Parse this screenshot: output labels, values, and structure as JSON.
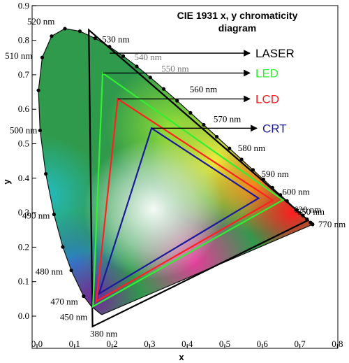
{
  "chart_data": {
    "type": "scatter",
    "title_line1": "CIE 1931 x, y chromaticity",
    "title_line2": "diagram",
    "xlabel": "x",
    "ylabel": "y",
    "xlim": [
      0,
      0.8
    ],
    "ylim": [
      -0.1,
      0.9
    ],
    "xticks": [
      "0.0",
      "0.1",
      "0.2",
      "0.3",
      "0.4",
      "0.5",
      "0.6",
      "0.7",
      "0.8"
    ],
    "yticks": [
      "0.0",
      "0.1",
      "0.2",
      "0.3",
      "0.4",
      "0.5",
      "0.6",
      "0.7",
      "0.8",
      "0.9"
    ],
    "x_tick_values": [
      0,
      0.1,
      0.2,
      0.3,
      0.4,
      0.5,
      0.6,
      0.7,
      0.8
    ],
    "y_tick_values": [
      0,
      0.1,
      0.2,
      0.3,
      0.4,
      0.5,
      0.6,
      0.7,
      0.8,
      0.9
    ],
    "spectral_locus": [
      [
        0.1741,
        0.005
      ],
      [
        0.1733,
        0.0048
      ],
      [
        0.1726,
        0.0048
      ],
      [
        0.1714,
        0.0051
      ],
      [
        0.1689,
        0.0069
      ],
      [
        0.1644,
        0.0109
      ],
      [
        0.1566,
        0.0177
      ],
      [
        0.144,
        0.0297
      ],
      [
        0.1241,
        0.0578
      ],
      [
        0.0913,
        0.1327
      ],
      [
        0.0687,
        0.2007
      ],
      [
        0.0454,
        0.295
      ],
      [
        0.0235,
        0.4127
      ],
      [
        0.0082,
        0.5384
      ],
      [
        0.0039,
        0.6548
      ],
      [
        0.0139,
        0.7502
      ],
      [
        0.0389,
        0.812
      ],
      [
        0.0743,
        0.8338
      ],
      [
        0.1142,
        0.8262
      ],
      [
        0.1547,
        0.8059
      ],
      [
        0.1929,
        0.7816
      ],
      [
        0.2296,
        0.7543
      ],
      [
        0.2658,
        0.7243
      ],
      [
        0.3016,
        0.6923
      ],
      [
        0.3373,
        0.6589
      ],
      [
        0.3731,
        0.6245
      ],
      [
        0.4087,
        0.5896
      ],
      [
        0.4441,
        0.5547
      ],
      [
        0.4788,
        0.5202
      ],
      [
        0.5125,
        0.4866
      ],
      [
        0.5448,
        0.4544
      ],
      [
        0.5752,
        0.4242
      ],
      [
        0.6029,
        0.3965
      ],
      [
        0.627,
        0.3725
      ],
      [
        0.6482,
        0.3514
      ],
      [
        0.6658,
        0.334
      ],
      [
        0.6801,
        0.3197
      ],
      [
        0.6915,
        0.3083
      ],
      [
        0.7006,
        0.2993
      ],
      [
        0.7079,
        0.292
      ],
      [
        0.714,
        0.2859
      ],
      [
        0.719,
        0.2809
      ],
      [
        0.723,
        0.277
      ],
      [
        0.726,
        0.274
      ],
      [
        0.7283,
        0.2717
      ],
      [
        0.73,
        0.27
      ],
      [
        0.7311,
        0.2689
      ],
      [
        0.732,
        0.268
      ],
      [
        0.7327,
        0.2673
      ],
      [
        0.7334,
        0.2666
      ],
      [
        0.734,
        0.266
      ]
    ],
    "wavelength_labels": [
      {
        "text": "520 nm",
        "x": 0.0743,
        "y": 0.8338
      },
      {
        "text": "530 nm",
        "x": 0.1547,
        "y": 0.8059
      },
      {
        "text": "540 nm",
        "x": 0.2296,
        "y": 0.7543
      },
      {
        "text": "550 nm",
        "x": 0.3016,
        "y": 0.6923
      },
      {
        "text": "560 nm",
        "x": 0.3731,
        "y": 0.6245
      },
      {
        "text": "570 nm",
        "x": 0.4441,
        "y": 0.5547
      },
      {
        "text": "580 nm",
        "x": 0.5125,
        "y": 0.4866
      },
      {
        "text": "590 nm",
        "x": 0.5752,
        "y": 0.4242
      },
      {
        "text": "600 nm",
        "x": 0.627,
        "y": 0.3725
      },
      {
        "text": "620 nm",
        "x": 0.6915,
        "y": 0.3083
      },
      {
        "text": "650 nm",
        "x": 0.726,
        "y": 0.274
      },
      {
        "text": "770 nm",
        "x": 0.734,
        "y": 0.266
      },
      {
        "text": "510 nm",
        "x": 0.0139,
        "y": 0.7502
      },
      {
        "text": "500 nm",
        "x": 0.0082,
        "y": 0.5384
      },
      {
        "text": "490 nm",
        "x": 0.0454,
        "y": 0.295
      },
      {
        "text": "480 nm",
        "x": 0.0913,
        "y": 0.1327
      },
      {
        "text": "470 nm",
        "x": 0.1241,
        "y": 0.0578
      },
      {
        "text": "450 nm",
        "x": 0.1566,
        "y": 0.0177
      },
      {
        "text": "380 nm",
        "x": 0.1741,
        "y": 0.005
      }
    ],
    "series": [
      {
        "name": "LASER",
        "color": "#000000",
        "points": [
          [
            0.138,
            0.83
          ],
          [
            0.722,
            0.278
          ],
          [
            0.148,
            -0.03
          ]
        ]
      },
      {
        "name": "LED",
        "color": "#33ee33",
        "points": [
          [
            0.175,
            0.705
          ],
          [
            0.655,
            0.337
          ],
          [
            0.149,
            0.028
          ]
        ]
      },
      {
        "name": "LCD",
        "color": "#ff2020",
        "points": [
          [
            0.215,
            0.63
          ],
          [
            0.628,
            0.336
          ],
          [
            0.158,
            0.043
          ]
        ]
      },
      {
        "name": "CRT",
        "color": "#1a1a9a",
        "points": [
          [
            0.305,
            0.545
          ],
          [
            0.59,
            0.342
          ],
          [
            0.165,
            0.065
          ]
        ]
      }
    ]
  }
}
